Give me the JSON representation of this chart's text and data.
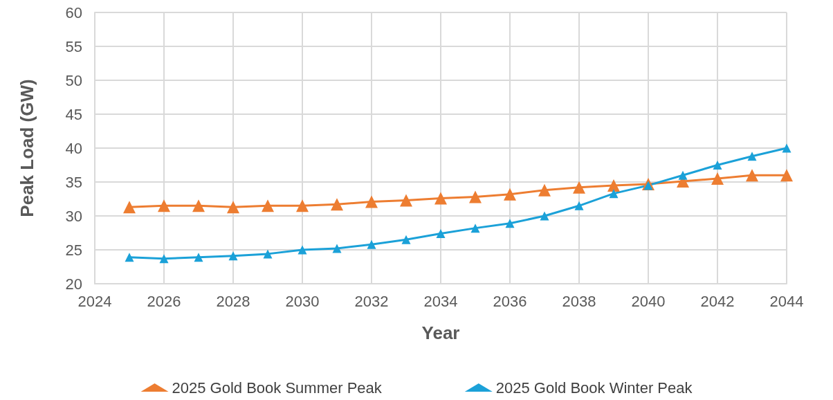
{
  "chart_data": {
    "type": "line",
    "xlabel": "Year",
    "ylabel": "Peak Load (GW)",
    "x": [
      2025,
      2026,
      2027,
      2028,
      2029,
      2030,
      2031,
      2032,
      2033,
      2034,
      2035,
      2036,
      2037,
      2038,
      2039,
      2040,
      2041,
      2042,
      2043,
      2044
    ],
    "series": [
      {
        "name": "2025 Gold Book Summer Peak",
        "color": "#ed7d31",
        "values": [
          31.3,
          31.5,
          31.5,
          31.3,
          31.5,
          31.5,
          31.7,
          32.1,
          32.3,
          32.6,
          32.8,
          33.2,
          33.8,
          34.2,
          34.5,
          34.7,
          35.1,
          35.5,
          36.0,
          36.0
        ]
      },
      {
        "name": "2025 Gold Book Winter Peak",
        "color": "#1ba1d8",
        "values": [
          23.9,
          23.7,
          23.9,
          24.1,
          24.4,
          25.0,
          25.2,
          25.8,
          26.5,
          27.4,
          28.2,
          28.9,
          30.0,
          31.5,
          33.3,
          34.5,
          36.0,
          37.5,
          38.8,
          40.0
        ]
      }
    ],
    "xlim": [
      2024,
      2044
    ],
    "xticks": [
      2024,
      2026,
      2028,
      2030,
      2032,
      2034,
      2036,
      2038,
      2040,
      2042,
      2044
    ],
    "ylim": [
      20,
      60
    ],
    "yticks": [
      20,
      25,
      30,
      35,
      40,
      45,
      50,
      55,
      60
    ],
    "grid": true,
    "legend": "bottom",
    "marker": "triangle",
    "line_style": "solid"
  }
}
